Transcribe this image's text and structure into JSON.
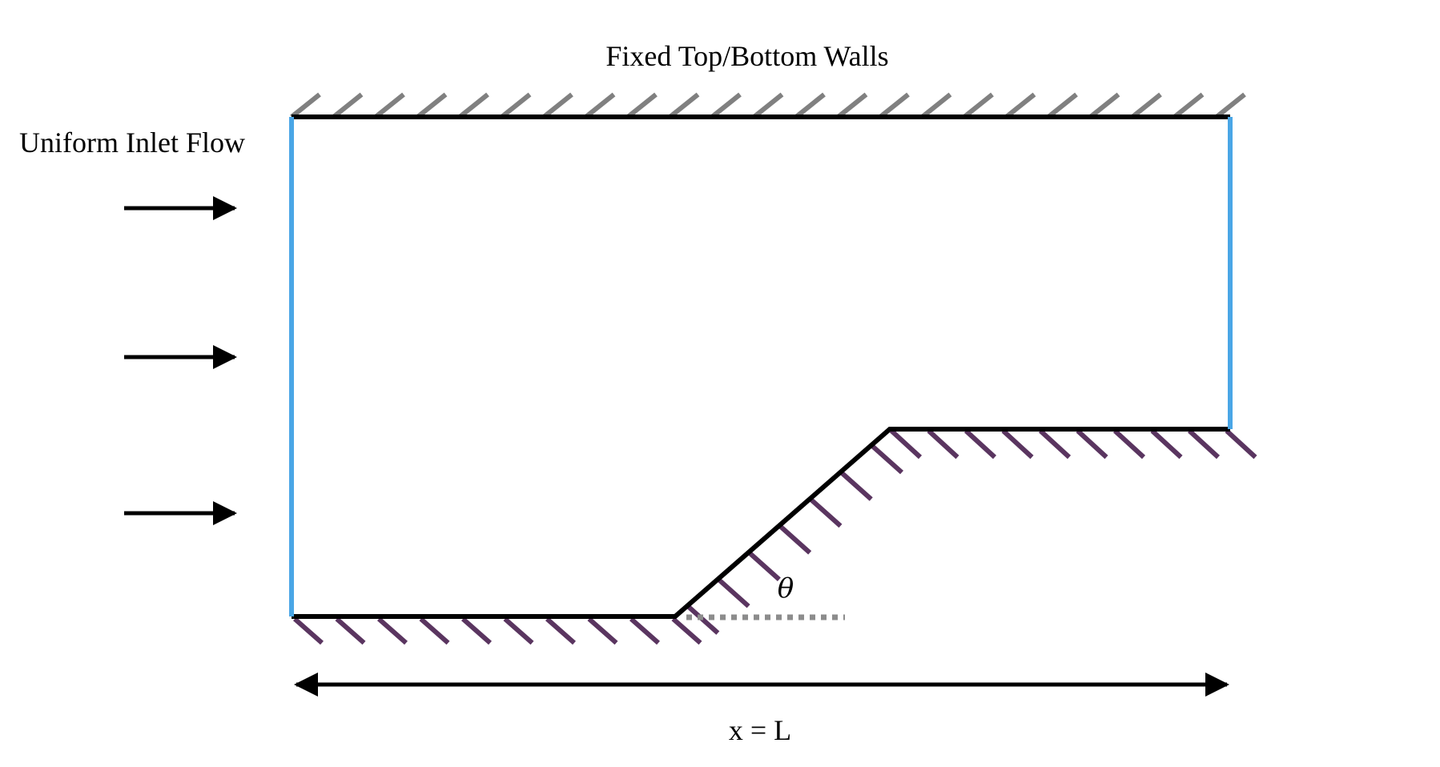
{
  "labels": {
    "top_walls": "Fixed Top/Bottom Walls",
    "inlet": "Uniform Inlet Flow",
    "angle": "θ",
    "length": "x = L"
  },
  "colors": {
    "wall": "#000000",
    "top_hatch": "#808080",
    "bottom_hatch": "#5a3560",
    "boundary": "#4aa6e6",
    "reference_line": "#8c8c8c",
    "arrow": "#000000"
  }
}
